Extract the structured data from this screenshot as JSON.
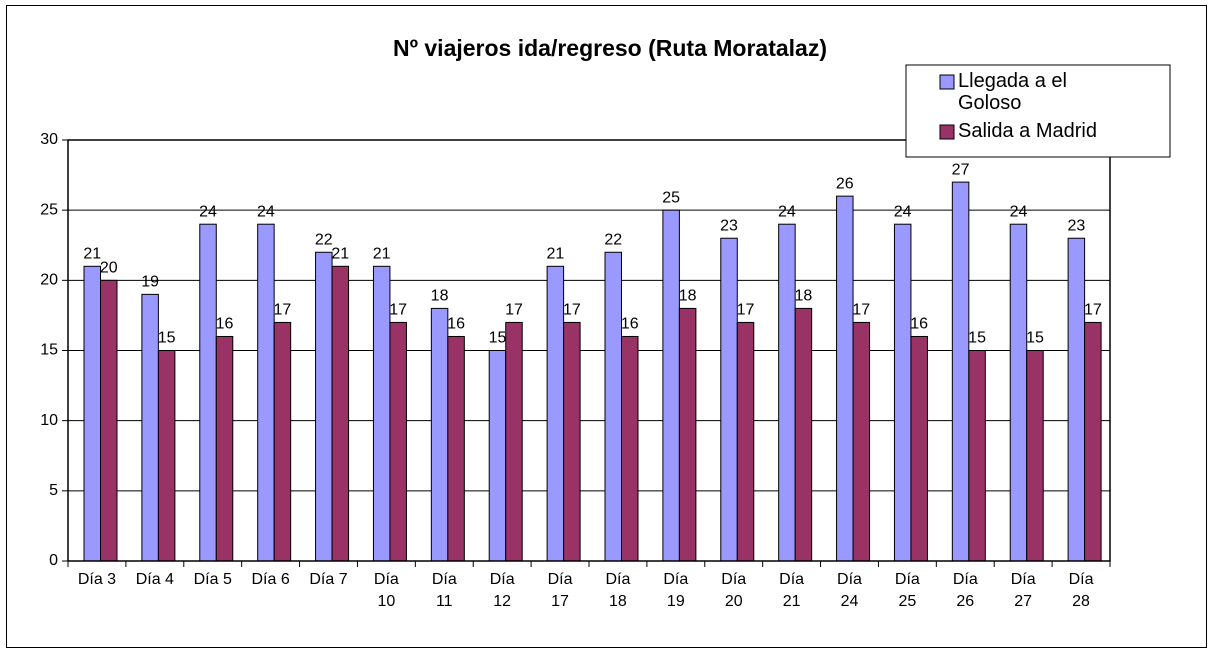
{
  "chart_data": {
    "type": "bar",
    "title": "Nº viajeros ida/regreso (Ruta Moratalaz)",
    "categories": [
      "Día 3",
      "Día 4",
      "Día 5",
      "Día 6",
      "Día 7",
      "Día 10",
      "Día 11",
      "Día 12",
      "Día 17",
      "Día 18",
      "Día 19",
      "Día 20",
      "Día 21",
      "Día 24",
      "Día 25",
      "Día 26",
      "Día 27",
      "Día 28"
    ],
    "series": [
      {
        "name": "Llegada a el Goloso",
        "color": "#9999ff",
        "values": [
          21,
          19,
          24,
          24,
          22,
          21,
          18,
          15,
          21,
          22,
          25,
          23,
          24,
          26,
          24,
          27,
          24,
          23
        ]
      },
      {
        "name": "Salida a Madrid",
        "color": "#993366",
        "values": [
          20,
          15,
          16,
          17,
          21,
          17,
          16,
          17,
          17,
          16,
          18,
          17,
          18,
          17,
          16,
          15,
          15,
          17
        ]
      }
    ],
    "ylim": [
      0,
      30
    ],
    "yticks": [
      0,
      5,
      10,
      15,
      20,
      25,
      30
    ],
    "grid": true,
    "legend": "top-right"
  }
}
